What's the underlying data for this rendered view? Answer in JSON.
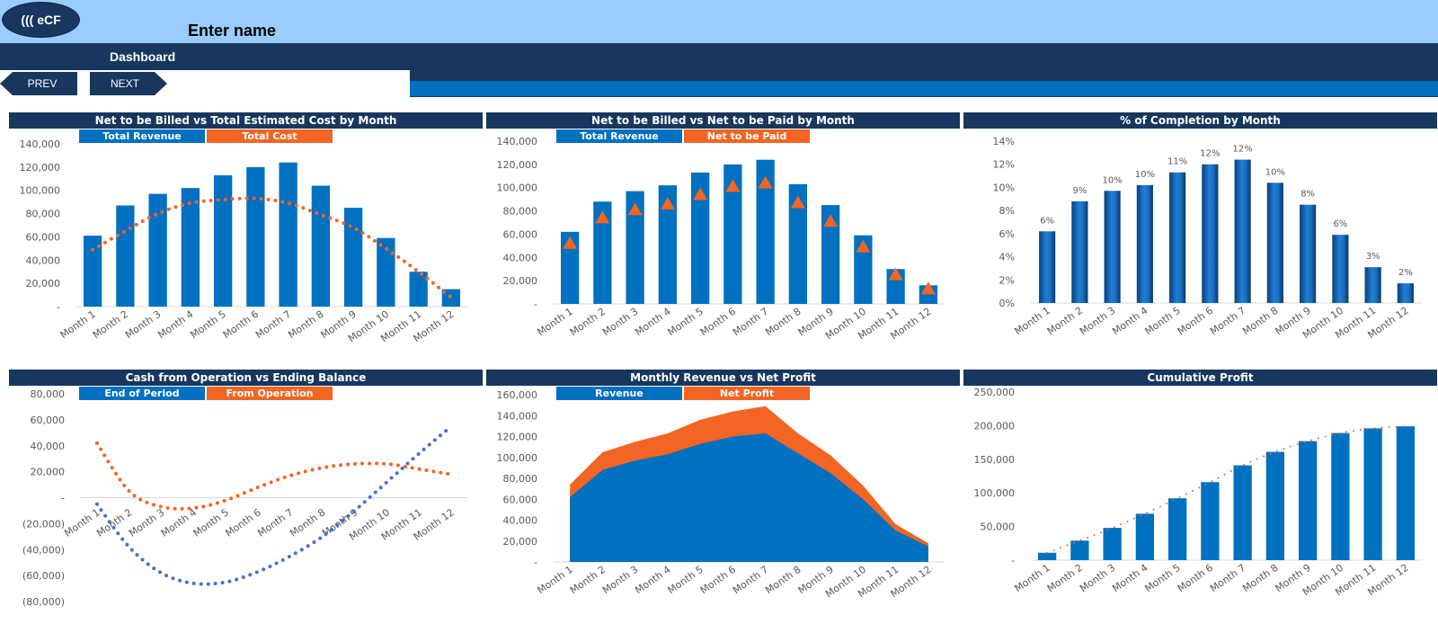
{
  "header": {
    "logo_text": "((( eCF",
    "title": "Enter name"
  },
  "nav": {
    "section_label": "Dashboard",
    "prev_label": "PREV",
    "next_label": "NEXT"
  },
  "colors": {
    "blue": "#0070C0",
    "orange": "#F26522",
    "navy": "#17375E",
    "light_blue": "#99CCFF",
    "dot_blue": "#4472C4"
  },
  "chart_data": [
    {
      "id": "c1",
      "type": "bar",
      "title": "Net to be Billed vs Total Estimated  Cost by Month",
      "categories": [
        "Month 1",
        "Month 2",
        "Month 3",
        "Month 4",
        "Month 5",
        "Month 6",
        "Month 7",
        "Month 8",
        "Month 9",
        "Month 10",
        "Month 11",
        "Month 12"
      ],
      "series": [
        {
          "name": "Total Revenue",
          "type": "bar",
          "values": [
            61000,
            87000,
            97000,
            102000,
            113000,
            120000,
            124000,
            104000,
            85000,
            59000,
            30000,
            15000
          ]
        },
        {
          "name": "Total Cost",
          "type": "dotted-line",
          "values": [
            49000,
            65000,
            80000,
            89000,
            92000,
            93000,
            89000,
            79000,
            68000,
            50000,
            30000,
            8000
          ]
        }
      ],
      "ylim": [
        0,
        140000
      ],
      "yticks": [
        "-",
        "20,000",
        "40,000",
        "60,000",
        "80,000",
        "100,000",
        "120,000",
        "140,000"
      ]
    },
    {
      "id": "c2",
      "type": "bar",
      "title": "Net to be Billed  vs Net to be Paid by Month",
      "categories": [
        "Month 1",
        "Month 2",
        "Month 3",
        "Month 4",
        "Month 5",
        "Month 6",
        "Month 7",
        "Month 8",
        "Month 9",
        "Month 10",
        "Month 11",
        "Month 12"
      ],
      "series": [
        {
          "name": "Total Revenue",
          "type": "bar",
          "values": [
            62000,
            88000,
            97000,
            102000,
            113000,
            120000,
            124000,
            103000,
            85000,
            59000,
            30000,
            16000
          ]
        },
        {
          "name": "Net to be Paid",
          "type": "triangle-marker",
          "values": [
            52000,
            74000,
            81000,
            86000,
            94000,
            101000,
            104000,
            87000,
            71000,
            49000,
            25000,
            13000
          ]
        }
      ],
      "ylim": [
        0,
        140000
      ],
      "yticks": [
        "-",
        "20,000",
        "40,000",
        "60,000",
        "80,000",
        "100,000",
        "120,000",
        "140,000"
      ]
    },
    {
      "id": "c3",
      "type": "bar",
      "title": "% of Completion by Month",
      "categories": [
        "Month 1",
        "Month 2",
        "Month 3",
        "Month 4",
        "Month 5",
        "Month 6",
        "Month 7",
        "Month 8",
        "Month 9",
        "Month 10",
        "Month 11",
        "Month 12"
      ],
      "series": [
        {
          "type": "cylinder-bar",
          "values": [
            6.2,
            8.8,
            9.7,
            10.2,
            11.3,
            12.0,
            12.4,
            10.4,
            8.5,
            5.9,
            3.1,
            1.7
          ],
          "data_labels": [
            "6%",
            "9%",
            "10%",
            "10%",
            "11%",
            "12%",
            "12%",
            "10%",
            "8%",
            "6%",
            "3%",
            "2%"
          ]
        }
      ],
      "ylim": [
        0,
        14
      ],
      "yticks": [
        "0%",
        "2%",
        "4%",
        "6%",
        "8%",
        "10%",
        "12%",
        "14%"
      ]
    },
    {
      "id": "c4",
      "type": "line",
      "title": "Cash from Operation vs Ending Balance",
      "categories": [
        "Month 1",
        "Month 2",
        "Month 3",
        "Month 4",
        "Month 5",
        "Month 6",
        "Month 7",
        "Month 8",
        "Month 9",
        "Month 10",
        "Month 11",
        "Month 12"
      ],
      "series": [
        {
          "name": "End of Period",
          "type": "dotted-line",
          "values": [
            -5000,
            -38000,
            -58000,
            -66000,
            -65000,
            -57000,
            -45000,
            -30000,
            -10000,
            12000,
            34000,
            55000
          ]
        },
        {
          "name": "From Operation",
          "type": "dotted-line",
          "values": [
            42000,
            5000,
            -7000,
            -8000,
            -2000,
            8000,
            17000,
            23000,
            26000,
            26000,
            22000,
            18000
          ]
        }
      ],
      "ylim": [
        -80000,
        80000
      ],
      "yticks": [
        "(80,000)",
        "(60,000)",
        "(40,000)",
        "(20,000)",
        "-",
        "20,000",
        "40,000",
        "60,000",
        "80,000"
      ]
    },
    {
      "id": "c5",
      "type": "area",
      "title": "Monthly Revenue vs Net Profit",
      "categories": [
        "Month 1",
        "Month 2",
        "Month 3",
        "Month 4",
        "Month 5",
        "Month 6",
        "Month 7",
        "Month 8",
        "Month 9",
        "Month 10",
        "Month 11",
        "Month 12"
      ],
      "series": [
        {
          "name": "Revenue",
          "values": [
            62000,
            88000,
            97000,
            103000,
            113000,
            120000,
            123000,
            104000,
            85000,
            60000,
            30000,
            15000
          ]
        },
        {
          "name": "Net Profit",
          "values": [
            12000,
            17000,
            18000,
            20000,
            23000,
            24000,
            26000,
            19000,
            17000,
            13000,
            6000,
            3000
          ]
        }
      ],
      "stacked": true,
      "ylim": [
        0,
        160000
      ],
      "yticks": [
        "-",
        "20,000",
        "40,000",
        "60,000",
        "80,000",
        "100,000",
        "120,000",
        "140,000",
        "160,000"
      ]
    },
    {
      "id": "c6",
      "type": "bar",
      "title": "Cumulative Profit",
      "categories": [
        "Month 1",
        "Month 2",
        "Month 3",
        "Month 4",
        "Month 5",
        "Month 6",
        "Month 7",
        "Month 8",
        "Month 9",
        "Month 10",
        "Month 11",
        "Month 12"
      ],
      "series": [
        {
          "type": "bar",
          "values": [
            11000,
            29000,
            48000,
            69000,
            92000,
            116000,
            141000,
            161000,
            177000,
            189000,
            196000,
            199000
          ]
        },
        {
          "type": "dotted-trend",
          "values": [
            11000,
            29000,
            48000,
            69000,
            92000,
            116000,
            141000,
            161000,
            177000,
            189000,
            196000,
            199000
          ]
        }
      ],
      "ylim": [
        0,
        250000
      ],
      "yticks": [
        "-",
        "50,000",
        "100,000",
        "150,000",
        "200,000",
        "250,000"
      ]
    }
  ]
}
